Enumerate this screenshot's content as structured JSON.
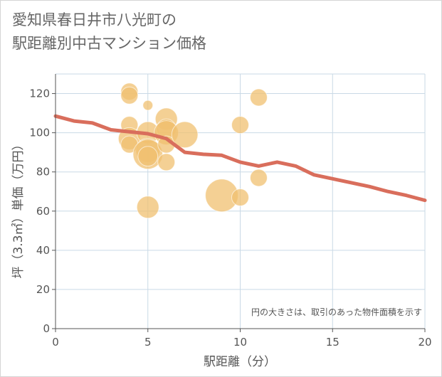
{
  "title_lines": [
    "愛知県春日井市八光町の",
    "駅距離別中古マンション価格"
  ],
  "chart_data": {
    "type": "scatter",
    "xlabel": "駅距離（分）",
    "ylabel": "坪（3.3㎡）単価（万円）",
    "xlim": [
      0,
      20
    ],
    "ylim": [
      0,
      130
    ],
    "xticks": [
      0,
      5,
      10,
      15,
      20
    ],
    "yticks": [
      0,
      20,
      40,
      60,
      80,
      100,
      120
    ],
    "grid": true,
    "note": "円の大きさは、取引のあった物件面積を示す",
    "colors": {
      "bubble": "#f0c070",
      "trend": "#d96e5c",
      "grid": "#c9d9e6"
    },
    "series": [
      {
        "kind": "bubbles",
        "points": [
          {
            "x": 4,
            "y": 121,
            "size": 3
          },
          {
            "x": 4,
            "y": 119,
            "size": 3
          },
          {
            "x": 4,
            "y": 104,
            "size": 3
          },
          {
            "x": 4,
            "y": 97,
            "size": 5
          },
          {
            "x": 4,
            "y": 94,
            "size": 3
          },
          {
            "x": 5,
            "y": 114,
            "size": 1
          },
          {
            "x": 5,
            "y": 100,
            "size": 5
          },
          {
            "x": 5,
            "y": 91,
            "size": 6
          },
          {
            "x": 5,
            "y": 89,
            "size": 9
          },
          {
            "x": 5,
            "y": 88,
            "size": 4
          },
          {
            "x": 5,
            "y": 62,
            "size": 5
          },
          {
            "x": 6,
            "y": 107,
            "size": 5
          },
          {
            "x": 6,
            "y": 102,
            "size": 4
          },
          {
            "x": 6,
            "y": 100,
            "size": 6
          },
          {
            "x": 6,
            "y": 94,
            "size": 3
          },
          {
            "x": 6,
            "y": 85,
            "size": 3
          },
          {
            "x": 7,
            "y": 99,
            "size": 7
          },
          {
            "x": 9,
            "y": 68,
            "size": 11
          },
          {
            "x": 10,
            "y": 104,
            "size": 3
          },
          {
            "x": 10,
            "y": 67,
            "size": 3
          },
          {
            "x": 11,
            "y": 118,
            "size": 3
          },
          {
            "x": 11,
            "y": 77,
            "size": 3
          }
        ]
      },
      {
        "kind": "line",
        "x": [
          0,
          1,
          2,
          3,
          4,
          5,
          6,
          7,
          8,
          9,
          10,
          11,
          12,
          13,
          14,
          15,
          16,
          17,
          18,
          19,
          20
        ],
        "y": [
          108.5,
          106,
          105,
          101.5,
          100.5,
          99.5,
          97,
          90,
          89,
          88.5,
          85,
          83,
          85,
          83,
          78.5,
          76.5,
          74.5,
          72.5,
          70,
          68,
          65.5
        ]
      }
    ]
  }
}
